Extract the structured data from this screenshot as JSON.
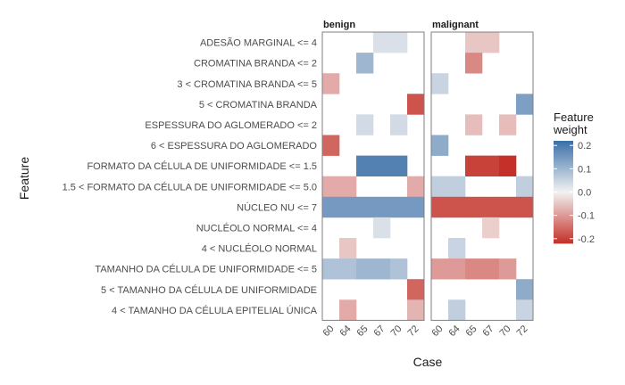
{
  "chart_data": {
    "type": "heatmap",
    "xlabel": "Case",
    "ylabel": "Feature",
    "facets": [
      "benign",
      "malignant"
    ],
    "cases": [
      "60",
      "64",
      "65",
      "67",
      "70",
      "72"
    ],
    "features": [
      "ADESÃO MARGINAL <= 4",
      "CROMATINA BRANDA <= 2",
      "3 < CROMATINA BRANDA <= 5",
      "5 < CROMATINA BRANDA",
      "ESPESSURA DO AGLOMERADO <= 2",
      "6 < ESPESSURA DO AGLOMERADO",
      "FORMATO DA CÉLULA DE UNIFORMIDADE <= 1.5",
      "1.5 < FORMATO DA CÉLULA DE UNIFORMIDADE <= 5.0",
      "NÚCLEO NU <= 7",
      "NUCLÉOLO NORMAL <= 4",
      "4 < NUCLÉOLO NORMAL",
      "TAMANHO DA CÉLULA DE UNIFORMIDADE <= 5",
      "5 < TAMANHO DA CÉLULA DE UNIFORMIDADE",
      "4 < TAMANHO DA CÉLULA EPITELIAL ÚNICA"
    ],
    "values": {
      "benign": [
        [
          null,
          null,
          null,
          0.03,
          0.03,
          null
        ],
        [
          null,
          null,
          0.1,
          null,
          null,
          null
        ],
        [
          -0.08,
          null,
          null,
          null,
          null,
          null
        ],
        [
          null,
          null,
          null,
          null,
          null,
          -0.18
        ],
        [
          null,
          null,
          0.04,
          null,
          0.04,
          null
        ],
        [
          -0.16,
          null,
          null,
          null,
          null,
          null
        ],
        [
          null,
          null,
          0.19,
          0.19,
          0.19,
          null
        ],
        [
          -0.08,
          -0.08,
          null,
          null,
          null,
          -0.08
        ],
        [
          0.15,
          0.15,
          0.15,
          0.15,
          0.15,
          0.15
        ],
        [
          null,
          null,
          null,
          0.03,
          null,
          null
        ],
        [
          null,
          -0.05,
          null,
          null,
          null,
          null
        ],
        [
          0.08,
          0.08,
          0.1,
          0.1,
          0.08,
          null
        ],
        [
          null,
          null,
          null,
          null,
          null,
          -0.16
        ],
        [
          null,
          -0.08,
          null,
          null,
          null,
          -0.07
        ]
      ],
      "malignant": [
        [
          null,
          null,
          -0.05,
          -0.05,
          null,
          null
        ],
        [
          null,
          null,
          -0.12,
          null,
          null,
          null
        ],
        [
          0.05,
          null,
          null,
          null,
          null,
          null
        ],
        [
          null,
          null,
          null,
          null,
          null,
          0.14
        ],
        [
          null,
          null,
          -0.06,
          null,
          -0.06,
          null
        ],
        [
          0.12,
          null,
          null,
          null,
          null,
          null
        ],
        [
          null,
          null,
          -0.2,
          -0.2,
          -0.22,
          null
        ],
        [
          0.06,
          0.06,
          null,
          null,
          null,
          0.06
        ],
        [
          -0.18,
          -0.18,
          -0.18,
          -0.18,
          -0.18,
          -0.18
        ],
        [
          null,
          null,
          null,
          -0.04,
          null,
          null
        ],
        [
          null,
          0.05,
          null,
          null,
          null,
          null
        ],
        [
          -0.1,
          -0.1,
          -0.12,
          -0.12,
          -0.1,
          null
        ],
        [
          null,
          null,
          null,
          null,
          null,
          0.12
        ],
        [
          null,
          0.06,
          null,
          null,
          null,
          0.05
        ]
      ]
    },
    "legend": {
      "title": "Feature\nweight",
      "ticks": [
        0.2,
        0.1,
        0.0,
        -0.1,
        -0.2
      ],
      "tick_labels": [
        "0.2",
        "0.1",
        "0.0",
        "-0.1",
        "-0.2"
      ],
      "range": [
        -0.22,
        0.22
      ]
    },
    "colors": {
      "high": "#3a6fa8",
      "mid": "#f2f2f2",
      "low": "#c53028",
      "panel_border": "#7f7f7f"
    }
  }
}
